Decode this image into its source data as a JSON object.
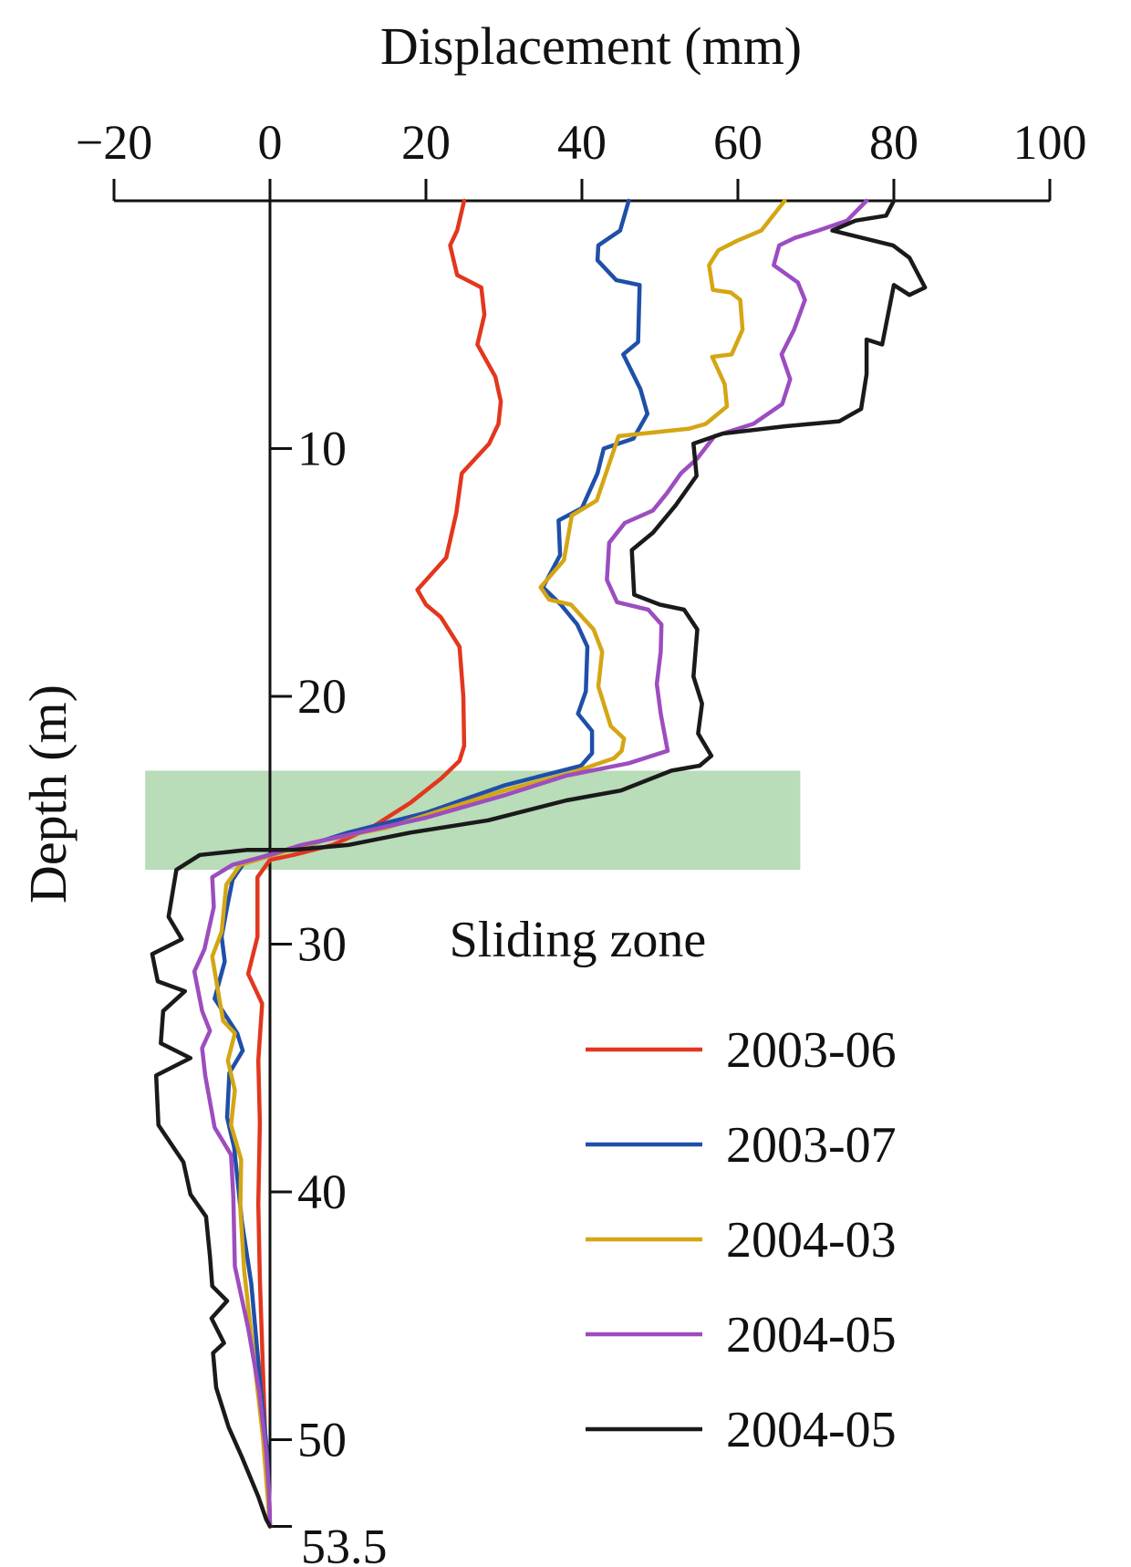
{
  "chart_data": {
    "type": "line",
    "title": "",
    "xlabel": "Displacement (mm)",
    "ylabel": "Depth (m)",
    "xlim": [
      -20,
      100
    ],
    "ylim": [
      0,
      53.5
    ],
    "y_inverted": true,
    "x_axis_position": "top",
    "x_ticks": [
      -20,
      0,
      20,
      40,
      60,
      80,
      100
    ],
    "x_tick_labels": [
      "−20",
      "0",
      "20",
      "40",
      "60",
      "80",
      "100"
    ],
    "y_ticks": [
      10,
      20,
      30,
      40,
      50,
      53.5
    ],
    "y_tick_labels": [
      "10",
      "20",
      "30",
      "40",
      "50",
      "53.5"
    ],
    "grid": false,
    "legend_position": "bottom-right",
    "annotation": {
      "label": "Sliding zone",
      "depth_range": [
        23,
        27
      ],
      "x_range": [
        -16,
        68
      ],
      "color": "#b9dcb9"
    },
    "series": [
      {
        "name": "2003-06",
        "color": "#e2371e",
        "points": [
          [
            24.9,
            0
          ],
          [
            24,
            1.2
          ],
          [
            23.1,
            1.8
          ],
          [
            24,
            3
          ],
          [
            27.1,
            3.5
          ],
          [
            27.5,
            4.6
          ],
          [
            26.6,
            5.8
          ],
          [
            28.9,
            7.1
          ],
          [
            29.6,
            8.1
          ],
          [
            29.3,
            9
          ],
          [
            28.1,
            9.8
          ],
          [
            24.6,
            11
          ],
          [
            23.9,
            12.6
          ],
          [
            22.6,
            14.4
          ],
          [
            18.9,
            15.7
          ],
          [
            20,
            16.3
          ],
          [
            21.9,
            16.8
          ],
          [
            24.3,
            18
          ],
          [
            24.8,
            20
          ],
          [
            24.9,
            22
          ],
          [
            24.3,
            22.6
          ],
          [
            22,
            23.3
          ],
          [
            18,
            24.3
          ],
          [
            13,
            25.3
          ],
          [
            8,
            26
          ],
          [
            3,
            26.4
          ],
          [
            0,
            26.6
          ],
          [
            -1.6,
            27.3
          ],
          [
            -1.6,
            29.7
          ],
          [
            -2.8,
            31.2
          ],
          [
            -1,
            32.4
          ],
          [
            -1.5,
            34.7
          ],
          [
            -1.3,
            37.2
          ],
          [
            -1.5,
            40.5
          ],
          [
            -1.3,
            43.5
          ],
          [
            -0.9,
            47.2
          ],
          [
            -0.6,
            50
          ],
          [
            -0.2,
            52.6
          ],
          [
            0,
            53.5
          ]
        ]
      },
      {
        "name": "2003-07",
        "color": "#1f4fa8",
        "points": [
          [
            46,
            0
          ],
          [
            44.9,
            1.2
          ],
          [
            42.1,
            1.8
          ],
          [
            42,
            2.4
          ],
          [
            44.4,
            3.2
          ],
          [
            47.4,
            3.4
          ],
          [
            47.2,
            5.7
          ],
          [
            45.3,
            6.2
          ],
          [
            47.5,
            7.6
          ],
          [
            48.4,
            8.6
          ],
          [
            46.6,
            9.6
          ],
          [
            42.8,
            10
          ],
          [
            42,
            11
          ],
          [
            40,
            12.4
          ],
          [
            37,
            12.9
          ],
          [
            37.2,
            14.3
          ],
          [
            35,
            15.6
          ],
          [
            37.3,
            16.3
          ],
          [
            39.4,
            17.1
          ],
          [
            40.7,
            18
          ],
          [
            40.5,
            19.8
          ],
          [
            39.5,
            20.7
          ],
          [
            41.3,
            21.4
          ],
          [
            41.3,
            22.3
          ],
          [
            39.9,
            22.8
          ],
          [
            30,
            23.6
          ],
          [
            20,
            24.7
          ],
          [
            10,
            25.5
          ],
          [
            5,
            26
          ],
          [
            0.9,
            26.3
          ],
          [
            -3.3,
            26.7
          ],
          [
            -4.8,
            27.4
          ],
          [
            -5.5,
            28.5
          ],
          [
            -6.2,
            29.7
          ],
          [
            -5.8,
            30.7
          ],
          [
            -7.1,
            32.2
          ],
          [
            -4.2,
            33.6
          ],
          [
            -3.5,
            34.3
          ],
          [
            -5.2,
            35.2
          ],
          [
            -5.5,
            37
          ],
          [
            -4.6,
            38.2
          ],
          [
            -3.6,
            41.2
          ],
          [
            -2.4,
            43.7
          ],
          [
            -1.2,
            47.9
          ],
          [
            -0.4,
            50.4
          ],
          [
            -0.1,
            52.2
          ],
          [
            0,
            53.5
          ]
        ]
      },
      {
        "name": "2004-03",
        "color": "#d4a614",
        "points": [
          [
            66,
            0
          ],
          [
            63,
            1.2
          ],
          [
            60,
            1.6
          ],
          [
            57.5,
            2
          ],
          [
            56.3,
            2.6
          ],
          [
            56.8,
            3.6
          ],
          [
            59.1,
            3.7
          ],
          [
            60.3,
            4
          ],
          [
            60.6,
            5.2
          ],
          [
            59.2,
            6.2
          ],
          [
            56.7,
            6.3
          ],
          [
            58.3,
            7.4
          ],
          [
            58.6,
            8.3
          ],
          [
            55.9,
            9
          ],
          [
            53.7,
            9.2
          ],
          [
            44.7,
            9.5
          ],
          [
            43.3,
            10.8
          ],
          [
            41.9,
            12.1
          ],
          [
            38.7,
            12.7
          ],
          [
            37.7,
            14.5
          ],
          [
            34.7,
            15.6
          ],
          [
            35.8,
            16.1
          ],
          [
            38.6,
            16.3
          ],
          [
            41.5,
            17.3
          ],
          [
            42.6,
            18.2
          ],
          [
            42.1,
            19.6
          ],
          [
            43.7,
            21.2
          ],
          [
            45.4,
            21.7
          ],
          [
            45.1,
            22.2
          ],
          [
            44.1,
            22.5
          ],
          [
            38.5,
            23.1
          ],
          [
            30,
            23.8
          ],
          [
            22,
            24.6
          ],
          [
            15,
            25.3
          ],
          [
            7,
            25.8
          ],
          [
            1.5,
            26.3
          ],
          [
            -3.8,
            26.8
          ],
          [
            -5.6,
            27.6
          ],
          [
            -6.2,
            29.5
          ],
          [
            -7.4,
            30.5
          ],
          [
            -6.5,
            32.2
          ],
          [
            -6,
            33.1
          ],
          [
            -4.5,
            33.6
          ],
          [
            -5.4,
            34.7
          ],
          [
            -4.5,
            35.9
          ],
          [
            -5,
            37.3
          ],
          [
            -3.7,
            38.7
          ],
          [
            -3.8,
            40.7
          ],
          [
            -3.3,
            43.2
          ],
          [
            -2.2,
            46.3
          ],
          [
            -0.9,
            49.9
          ],
          [
            0,
            53.5
          ]
        ]
      },
      {
        "name": "2004-05",
        "color": "#9c4dbf",
        "points": [
          [
            76.5,
            0
          ],
          [
            74,
            0.8
          ],
          [
            70.3,
            1.2
          ],
          [
            67.3,
            1.5
          ],
          [
            65.3,
            1.8
          ],
          [
            64.6,
            2.6
          ],
          [
            67.7,
            3.3
          ],
          [
            68.6,
            4
          ],
          [
            67.2,
            5.2
          ],
          [
            65.6,
            6.2
          ],
          [
            66.7,
            7.2
          ],
          [
            65.7,
            8.2
          ],
          [
            62,
            9
          ],
          [
            57,
            9.5
          ],
          [
            54.8,
            10.4
          ],
          [
            52.7,
            11
          ],
          [
            50.9,
            11.8
          ],
          [
            49.1,
            12.5
          ],
          [
            45.5,
            13
          ],
          [
            43.5,
            13.8
          ],
          [
            43.2,
            15.3
          ],
          [
            44.5,
            16.2
          ],
          [
            48.5,
            16.5
          ],
          [
            50.2,
            17.1
          ],
          [
            50.1,
            18.2
          ],
          [
            49.6,
            19.5
          ],
          [
            50.1,
            20.7
          ],
          [
            51,
            22.2
          ],
          [
            46,
            22.7
          ],
          [
            38,
            23.2
          ],
          [
            30,
            24
          ],
          [
            20,
            24.9
          ],
          [
            10,
            25.6
          ],
          [
            4,
            26
          ],
          [
            0,
            26.4
          ],
          [
            -4.8,
            26.8
          ],
          [
            -7.4,
            27.3
          ],
          [
            -7.2,
            28.5
          ],
          [
            -8.4,
            30.2
          ],
          [
            -9.7,
            31.1
          ],
          [
            -8.7,
            32.7
          ],
          [
            -7.7,
            33.5
          ],
          [
            -8.7,
            34.2
          ],
          [
            -8.3,
            35.3
          ],
          [
            -7.1,
            37.4
          ],
          [
            -5,
            38.5
          ],
          [
            -4.7,
            40.2
          ],
          [
            -4.5,
            43
          ],
          [
            -2.8,
            45.5
          ],
          [
            -1.4,
            48
          ],
          [
            -0.5,
            50.4
          ],
          [
            -0.1,
            52.2
          ],
          [
            0,
            53.5
          ]
        ]
      },
      {
        "name": "2004-05",
        "color": "#1a1a1a",
        "points": [
          [
            80,
            0
          ],
          [
            79,
            0.6
          ],
          [
            75.1,
            0.8
          ],
          [
            72.1,
            1.2
          ],
          [
            79.9,
            1.8
          ],
          [
            82,
            2.3
          ],
          [
            84,
            3.5
          ],
          [
            82,
            3.8
          ],
          [
            80,
            3.4
          ],
          [
            78.5,
            5.8
          ],
          [
            76.5,
            5.6
          ],
          [
            76.5,
            7
          ],
          [
            75.8,
            8.4
          ],
          [
            73,
            8.9
          ],
          [
            66,
            9.1
          ],
          [
            58,
            9.4
          ],
          [
            54.3,
            9.8
          ],
          [
            54.7,
            11.1
          ],
          [
            52,
            12.3
          ],
          [
            49.1,
            13.4
          ],
          [
            46.4,
            14.1
          ],
          [
            46.7,
            15.9
          ],
          [
            50,
            16.3
          ],
          [
            53.1,
            16.5
          ],
          [
            54.8,
            17.3
          ],
          [
            54.3,
            19.2
          ],
          [
            55.4,
            20.3
          ],
          [
            54.9,
            21.5
          ],
          [
            56.6,
            22.4
          ],
          [
            55.1,
            22.8
          ],
          [
            51.5,
            23
          ],
          [
            45,
            23.8
          ],
          [
            38,
            24.2
          ],
          [
            28,
            25
          ],
          [
            18,
            25.5
          ],
          [
            10,
            26
          ],
          [
            3,
            26.2
          ],
          [
            -3,
            26.2
          ],
          [
            -9,
            26.4
          ],
          [
            -12,
            27
          ],
          [
            -13,
            28.9
          ],
          [
            -11.3,
            29.8
          ],
          [
            -15.1,
            30.4
          ],
          [
            -14.4,
            31.5
          ],
          [
            -10.9,
            31.9
          ],
          [
            -13.7,
            32.7
          ],
          [
            -14,
            34
          ],
          [
            -10.2,
            34.6
          ],
          [
            -14.6,
            35.3
          ],
          [
            -14.3,
            37.3
          ],
          [
            -11.1,
            38.8
          ],
          [
            -10.2,
            40.1
          ],
          [
            -8.2,
            41
          ],
          [
            -7.7,
            42.6
          ],
          [
            -7.4,
            43.8
          ],
          [
            -5.5,
            44.4
          ],
          [
            -7.5,
            45.1
          ],
          [
            -5.9,
            46.1
          ],
          [
            -7.3,
            46.5
          ],
          [
            -6.9,
            47.9
          ],
          [
            -5.3,
            49.5
          ],
          [
            -3.6,
            50.7
          ],
          [
            -1.5,
            52.3
          ],
          [
            -0.5,
            53.2
          ],
          [
            0,
            53.5
          ]
        ]
      }
    ]
  }
}
